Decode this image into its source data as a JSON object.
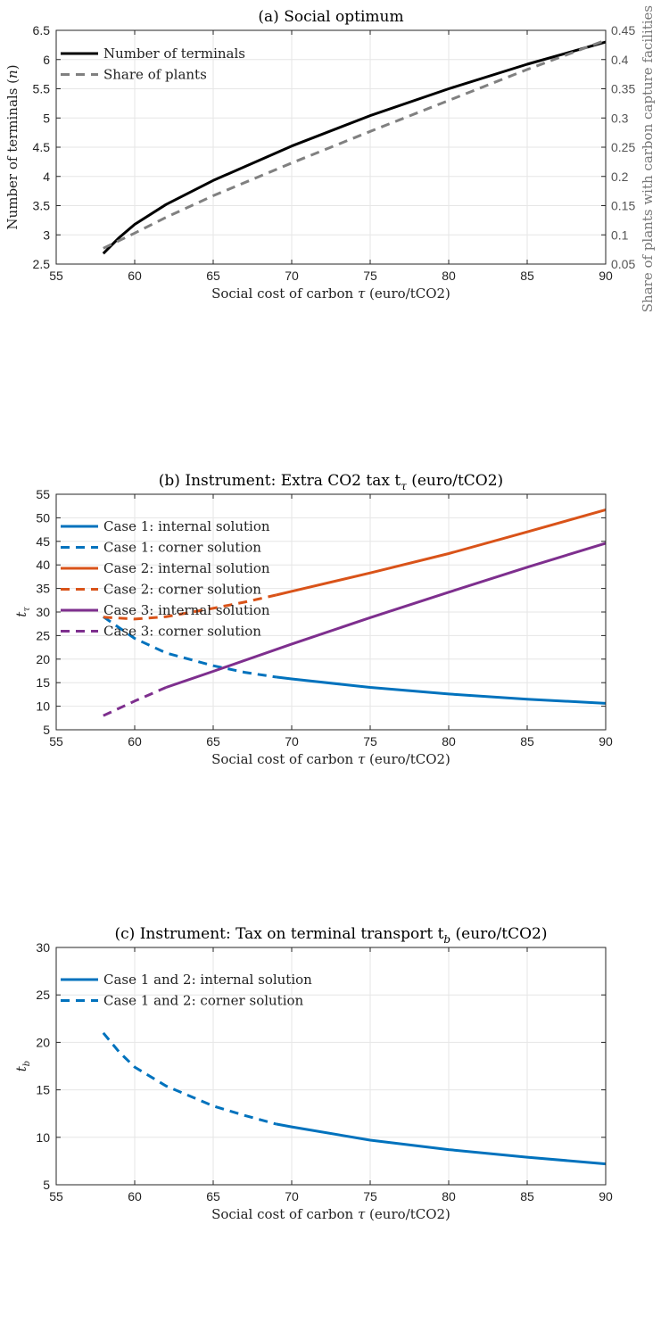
{
  "chart_data": [
    {
      "type": "line",
      "title": "(a) Social optimum",
      "xlabel": "Social cost of carbon τ (euro/tCO2)",
      "ylabel": "Number of terminals (n)",
      "y2label": "Share of plants with carbon capture facilities (q)",
      "xlim": [
        55,
        90
      ],
      "ylim": [
        2.5,
        6.5
      ],
      "y2lim": [
        0.05,
        0.45
      ],
      "xticks": [
        "55",
        "60",
        "65",
        "70",
        "75",
        "80",
        "85",
        "90"
      ],
      "yticks": [
        "2.5",
        "3",
        "3.5",
        "4",
        "4.5",
        "5",
        "5.5",
        "6",
        "6.5"
      ],
      "y2ticks": [
        "0.05",
        "0.1",
        "0.15",
        "0.2",
        "0.25",
        "0.3",
        "0.35",
        "0.4",
        "0.45"
      ],
      "grid": true,
      "legend": "top-left",
      "series": [
        {
          "name": "Number of terminals",
          "axis": "left",
          "color": "#000000",
          "style": "solid",
          "x": [
            58,
            59,
            60,
            62,
            65,
            70,
            75,
            80,
            85,
            90
          ],
          "y": [
            2.68,
            2.95,
            3.18,
            3.52,
            3.93,
            4.52,
            5.04,
            5.5,
            5.92,
            6.3
          ]
        },
        {
          "name": "Share of plants",
          "axis": "right",
          "color": "#808080",
          "style": "dashed",
          "x": [
            58,
            60,
            62,
            65,
            70,
            75,
            80,
            85,
            90
          ],
          "y": [
            0.077,
            0.103,
            0.13,
            0.167,
            0.223,
            0.277,
            0.33,
            0.383,
            0.433
          ]
        }
      ]
    },
    {
      "type": "line",
      "title": "(b) Instrument: Extra CO2 tax t",
      "title_sub": "τ",
      "title_tail": " (euro/tCO2)",
      "xlabel": "Social cost of carbon τ (euro/tCO2)",
      "ylabel": "t",
      "ylabel_sub": "τ",
      "xlim": [
        55,
        90
      ],
      "ylim": [
        5,
        55
      ],
      "xticks": [
        "55",
        "60",
        "65",
        "70",
        "75",
        "80",
        "85",
        "90"
      ],
      "yticks": [
        "5",
        "10",
        "15",
        "20",
        "25",
        "30",
        "35",
        "40",
        "45",
        "50",
        "55"
      ],
      "grid": true,
      "legend": "top-left",
      "series": [
        {
          "name": "Case 1: internal solution",
          "color": "#0072BD",
          "style": "solid",
          "x": [
            69,
            70,
            75,
            80,
            85,
            90
          ],
          "y": [
            16.2,
            15.8,
            14.0,
            12.6,
            11.5,
            10.6
          ]
        },
        {
          "name": "Case 1: corner solution",
          "color": "#0072BD",
          "style": "dashed",
          "x": [
            58,
            60,
            62,
            65,
            67,
            69
          ],
          "y": [
            29.0,
            24.4,
            21.3,
            18.6,
            17.2,
            16.2
          ]
        },
        {
          "name": "Case 2: internal solution",
          "color": "#D95319",
          "style": "solid",
          "x": [
            69,
            70,
            75,
            80,
            85,
            90
          ],
          "y": [
            33.6,
            34.4,
            38.3,
            42.4,
            47.0,
            51.7
          ]
        },
        {
          "name": "Case 2: corner solution",
          "color": "#D95319",
          "style": "dashed",
          "x": [
            58,
            60,
            62,
            65,
            67,
            69
          ],
          "y": [
            28.9,
            28.5,
            29.0,
            30.8,
            32.1,
            33.6
          ]
        },
        {
          "name": "Case 3: internal solution",
          "color": "#7E2F8E",
          "style": "solid",
          "x": [
            62,
            65,
            70,
            75,
            80,
            85,
            90
          ],
          "y": [
            14.0,
            17.4,
            23.2,
            28.8,
            34.2,
            39.5,
            44.6
          ]
        },
        {
          "name": "Case 3: corner solution",
          "color": "#7E2F8E",
          "style": "dashed",
          "x": [
            58,
            60,
            62
          ],
          "y": [
            8.0,
            11.1,
            14.0
          ]
        }
      ]
    },
    {
      "type": "line",
      "title": "(c) Instrument: Tax on terminal transport t",
      "title_sub": "b",
      "title_tail": " (euro/tCO2)",
      "xlabel": "Social cost of carbon τ (euro/tCO2)",
      "ylabel": "t",
      "ylabel_sub": "b",
      "xlim": [
        55,
        90
      ],
      "ylim": [
        5,
        30
      ],
      "xticks": [
        "55",
        "60",
        "65",
        "70",
        "75",
        "80",
        "85",
        "90"
      ],
      "yticks": [
        "5",
        "10",
        "15",
        "20",
        "25",
        "30"
      ],
      "grid": true,
      "legend": "top-left",
      "series": [
        {
          "name": "Case 1 and 2: internal solution",
          "color": "#0072BD",
          "style": "solid",
          "x": [
            69,
            70,
            75,
            80,
            85,
            90
          ],
          "y": [
            11.4,
            11.1,
            9.7,
            8.7,
            7.9,
            7.2
          ]
        },
        {
          "name": "Case 1 and 2: corner solution",
          "color": "#0072BD",
          "style": "dashed",
          "x": [
            58,
            59,
            60,
            62,
            65,
            67,
            69
          ],
          "y": [
            21.0,
            19.0,
            17.4,
            15.4,
            13.3,
            12.3,
            11.4
          ]
        }
      ]
    }
  ]
}
